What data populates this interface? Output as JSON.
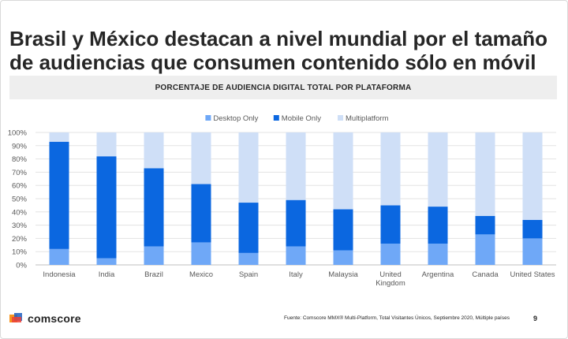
{
  "title": "Brasil y México destacan a nivel mundial por el tamaño de audiencias que consumen contenido sólo en móvil",
  "chart_band_title": "PORCENTAJE DE AUDIENCIA DIGITAL TOTAL POR PLATAFORMA",
  "logo": {
    "text": "comscore",
    "icon": "comscore-logo-icon"
  },
  "source": "Fuente: Comscore MMX® Multi-Platform, Total Visitantes Únicos, Septiembre 2020, Múltiple países",
  "page_number": "9",
  "chart_data": {
    "type": "bar",
    "stacked": true,
    "title": "PORCENTAJE DE AUDIENCIA DIGITAL TOTAL POR PLATAFORMA",
    "categories": [
      "Indonesia",
      "India",
      "Brazil",
      "Mexico",
      "Spain",
      "Italy",
      "Malaysia",
      "United Kingdom",
      "Argentina",
      "Canada",
      "United States"
    ],
    "category_lines": [
      [
        "Indonesia"
      ],
      [
        "India"
      ],
      [
        "Brazil"
      ],
      [
        "Mexico"
      ],
      [
        "Spain"
      ],
      [
        "Italy"
      ],
      [
        "Malaysia"
      ],
      [
        "United",
        "Kingdom"
      ],
      [
        "Argentina"
      ],
      [
        "Canada"
      ],
      [
        "United States"
      ]
    ],
    "series": [
      {
        "name": "Desktop Only",
        "color": "#6fa8f7",
        "values": [
          12,
          5,
          14,
          17,
          9,
          14,
          11,
          16,
          16,
          23,
          20
        ]
      },
      {
        "name": "Mobile Only",
        "color": "#0b67e0",
        "values": [
          81,
          77,
          59,
          44,
          38,
          35,
          31,
          29,
          28,
          14,
          14
        ]
      },
      {
        "name": "Multiplatform",
        "color": "#cfdff7",
        "values": [
          7,
          18,
          27,
          39,
          53,
          51,
          58,
          55,
          56,
          63,
          66
        ]
      }
    ],
    "ylim": [
      0,
      100
    ],
    "yticks": [
      "0%",
      "10%",
      "20%",
      "30%",
      "40%",
      "50%",
      "60%",
      "70%",
      "80%",
      "90%",
      "100%"
    ],
    "xlabel": "",
    "ylabel": "",
    "grid": true,
    "legend_position": "top-center"
  }
}
